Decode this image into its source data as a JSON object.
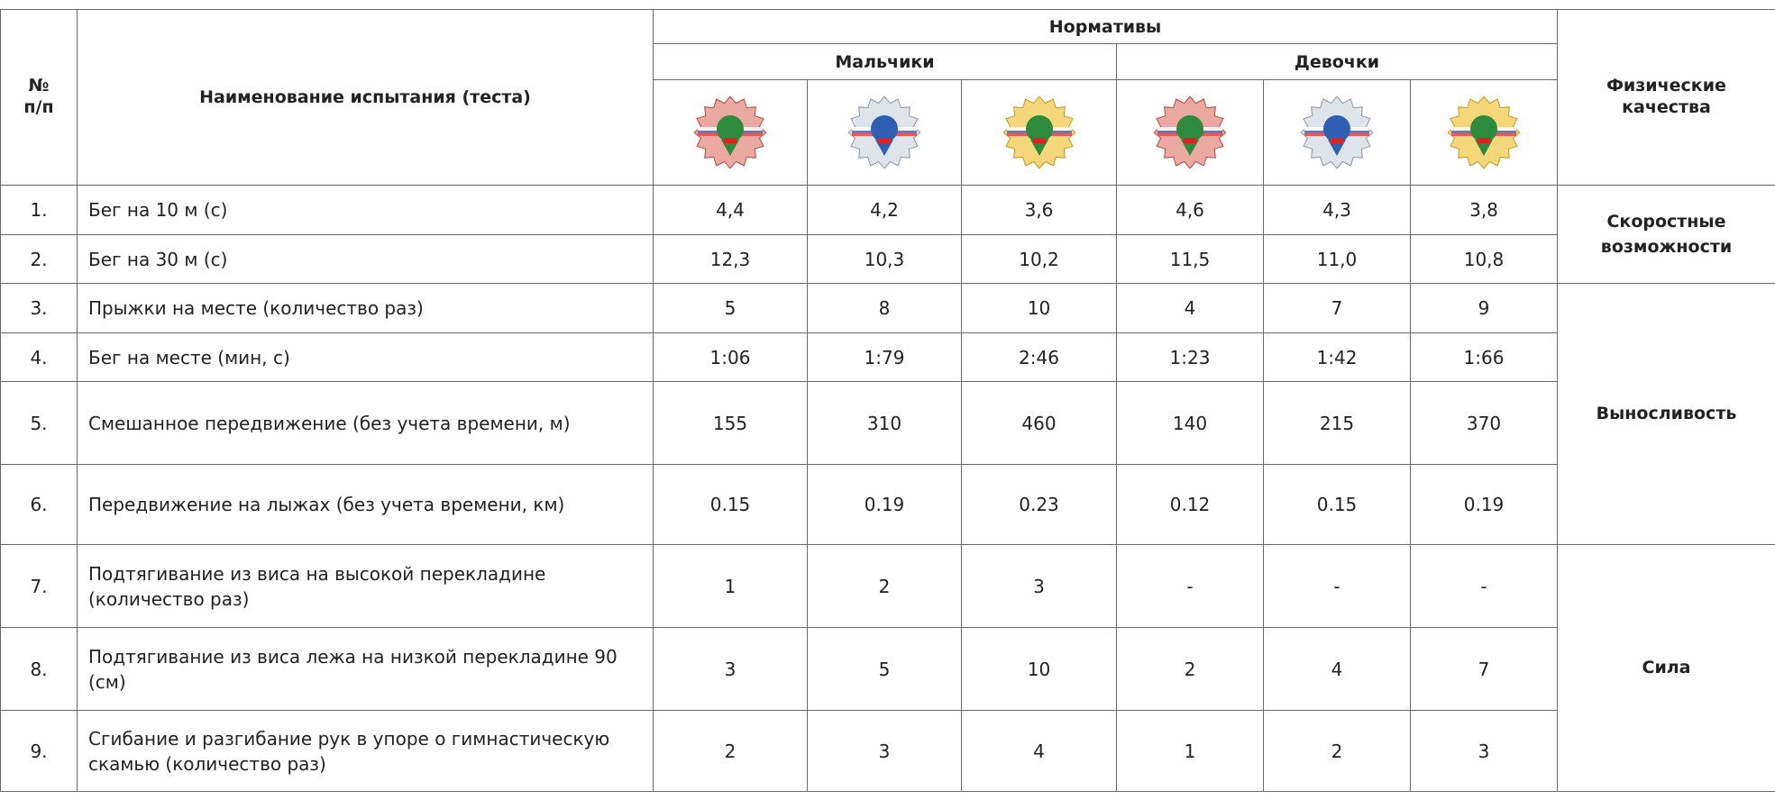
{
  "header": {
    "number": "№\nп/п",
    "name": "Наименование испытания (теста)",
    "norms": "Нормативы",
    "boys": "Мальчики",
    "girls": "Девочки",
    "qualities": "Физические\nкачества"
  },
  "groups": [
    {
      "quality": "Скоростные возможности",
      "rows": [
        {
          "number": "1.",
          "name": "Бег на 10 м (с)",
          "values": [
            "4,4",
            "4,2",
            "3,6",
            "4,6",
            "4,3",
            "3,8"
          ]
        },
        {
          "number": "2.",
          "name": "Бег на 30 м (с)",
          "values": [
            "12,3",
            "10,3",
            "10,2",
            "11,5",
            "11,0",
            "10,8"
          ]
        }
      ]
    },
    {
      "quality": "Выносливость",
      "rows": [
        {
          "number": "3.",
          "name": "Прыжки на месте (количество раз)",
          "values": [
            "5",
            "8",
            "10",
            "4",
            "7",
            "9"
          ]
        },
        {
          "number": "4.",
          "name": "Бег на месте (мин, с)",
          "values": [
            "1:06",
            "1:79",
            "2:46",
            "1:23",
            "1:42",
            "1:66"
          ]
        },
        {
          "number": "5.",
          "name": "Смешанное передвижение (без учета времени, м)",
          "values": [
            "155",
            "310",
            "460",
            "140",
            "215",
            "370"
          ]
        },
        {
          "number": "6.",
          "name": "Передвижение на лыжах (без учета времени, км)",
          "values": [
            "0.15",
            "0.19",
            "0.23",
            "0.12",
            "0.15",
            "0.19"
          ]
        }
      ]
    },
    {
      "quality": "Сила",
      "rows": [
        {
          "number": "7.",
          "name": "Подтягивание из виса на высокой перекладине (количество раз)",
          "values": [
            "1",
            "2",
            "3",
            "-",
            "-",
            "-"
          ]
        },
        {
          "number": "8.",
          "name": "Подтягивание из виса лежа на низкой перекладине 90 (см)",
          "values": [
            "3",
            "5",
            "10",
            "2",
            "4",
            "7"
          ]
        },
        {
          "number": "9.",
          "name": "Сгибание и разгибание рук в упоре о гимнастическую скамью (количество раз)",
          "values": [
            "2",
            "3",
            "4",
            "1",
            "2",
            "3"
          ]
        }
      ]
    }
  ]
}
